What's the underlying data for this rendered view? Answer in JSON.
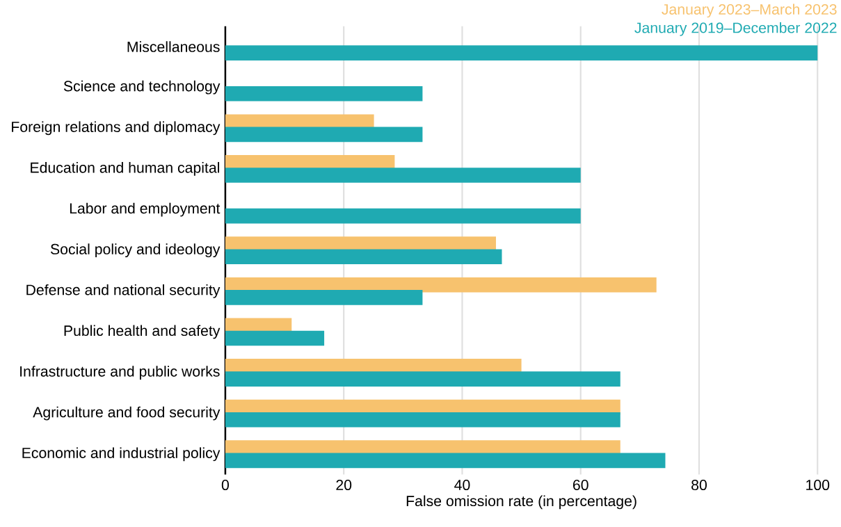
{
  "chart_data": {
    "type": "bar",
    "orientation": "horizontal",
    "xlabel": "False omission rate (in percentage)",
    "categories": [
      "Miscellaneous",
      "Science and technology",
      "Foreign relations and diplomacy",
      "Education and human capital",
      "Labor and employment",
      "Social policy and ideology",
      "Defense and national security",
      "Public health and safety",
      "Infrastructure and public works",
      "Agriculture and food security",
      "Economic and industrial policy"
    ],
    "series": [
      {
        "name": "January 2023–March 2023",
        "color": "#f7c26e",
        "values": [
          null,
          null,
          25.1,
          28.6,
          null,
          45.7,
          72.8,
          11.2,
          50,
          66.7,
          66.7
        ]
      },
      {
        "name": "January 2019–December 2022",
        "color": "#1faab2",
        "values": [
          100,
          33.3,
          33.3,
          60,
          60,
          46.7,
          33.3,
          16.7,
          66.7,
          66.7,
          74.3
        ]
      }
    ],
    "xlim": [
      0,
      100
    ],
    "xticks": [
      0,
      20,
      40,
      60,
      80,
      100
    ],
    "grid": "x",
    "legend": "top right"
  }
}
